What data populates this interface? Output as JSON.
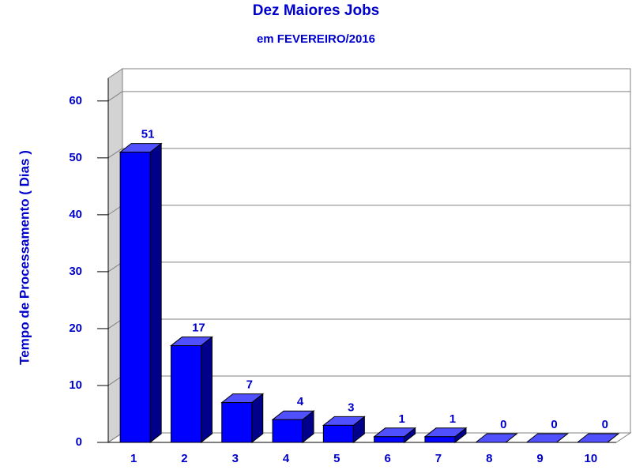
{
  "chart_data": {
    "type": "bar3d",
    "title": "Dez Maiores Jobs",
    "subtitle": "em FEVEREIRO/2016",
    "y_label": "Tempo de Processamento ( Dias )",
    "categories": [
      "1",
      "2",
      "3",
      "4",
      "5",
      "6",
      "7",
      "8",
      "9",
      "10"
    ],
    "values": [
      51,
      17,
      7,
      4,
      3,
      1,
      1,
      0,
      0,
      0
    ],
    "color": "#0000ff",
    "ylim": [
      0,
      64
    ],
    "yticks": [
      0,
      10,
      20,
      30,
      40,
      50,
      60
    ],
    "grid": true
  }
}
